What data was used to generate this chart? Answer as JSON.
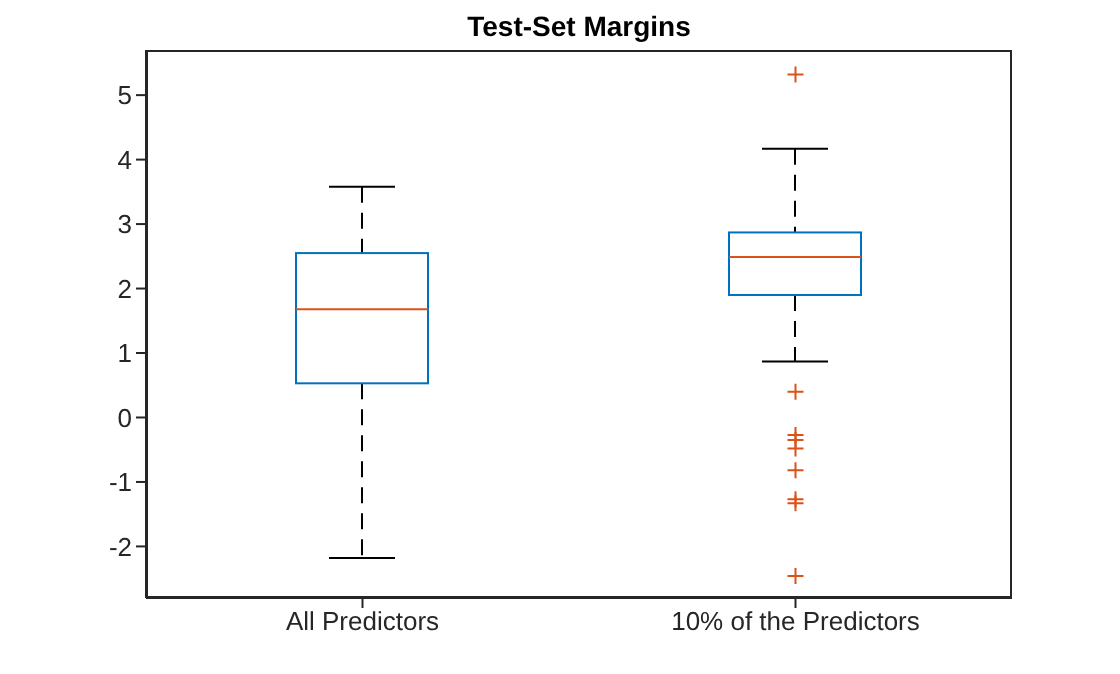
{
  "chart_data": {
    "type": "box",
    "title": "Test-Set Margins",
    "categories": [
      "All Predictors",
      "10% of the Predictors"
    ],
    "series": [
      {
        "color": "#0072bd",
        "boxes": [
          {
            "low": -2.18,
            "q1": 0.53,
            "median": 1.68,
            "q3": 2.55,
            "high": 3.58
          },
          {
            "low": 0.87,
            "q1": 1.9,
            "median": 2.49,
            "q3": 2.87,
            "high": 4.17,
            "outliers": [
              5.32,
              0.4,
              -0.27,
              -0.35,
              -0.48,
              -0.82,
              -1.27,
              -1.33,
              -2.46
            ]
          }
        ]
      }
    ],
    "ylim": [
      -2.8,
      5.7
    ],
    "yticks": [
      -2,
      -1,
      0,
      1,
      2,
      3,
      4,
      5
    ]
  }
}
